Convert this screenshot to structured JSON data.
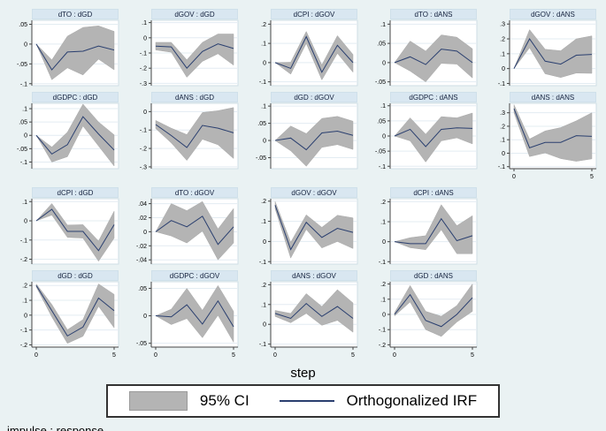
{
  "window": {
    "xlabel": "step",
    "footnote": "impulse : response"
  },
  "legend": {
    "ci_label": "95% CI",
    "irf_label": "Orthogonalized IRF"
  },
  "colors": {
    "background": "#eaf2f3",
    "plot_bg": "#ffffff",
    "plot_border": "#cfdde6",
    "grid": "#e3ecf2",
    "title_strip": "#d9e7f1",
    "ci_fill": "#b4b4b4",
    "ci_edge": "#a8a8a8",
    "irf_line": "#2a3f6f",
    "axis": "#444444"
  },
  "chart_data": {
    "type": "line",
    "note": "panel of orthogonalized impulse-response functions with 95% CI bands",
    "x": [
      0,
      1,
      2,
      3,
      4,
      5
    ],
    "xticks_shown": [
      0,
      5
    ],
    "rows": [
      [
        0,
        1,
        2,
        3,
        4
      ],
      [
        5,
        6,
        7,
        8,
        9
      ],
      [
        10,
        11,
        12,
        13
      ],
      [
        14,
        15,
        16,
        17
      ]
    ],
    "charts": [
      {
        "title": "dTO : dGD",
        "yticks": [
          ".05",
          "0",
          "-.05",
          "-.1"
        ],
        "ylim": [
          -0.105,
          0.06
        ],
        "show_x_axis": false,
        "irf": [
          0,
          -0.065,
          -0.02,
          -0.018,
          -0.005,
          -0.015
        ],
        "ci_lower": [
          0,
          -0.09,
          -0.06,
          -0.078,
          -0.038,
          -0.065
        ],
        "ci_upper": [
          0,
          -0.04,
          0.02,
          0.042,
          0.046,
          0.032
        ]
      },
      {
        "title": "dGOV : dGD",
        "yticks": [
          ".1",
          "0",
          "-.1",
          "-.2",
          "-.3"
        ],
        "ylim": [
          -0.315,
          0.115
        ],
        "show_x_axis": false,
        "irf": [
          -0.055,
          -0.06,
          -0.2,
          -0.09,
          -0.04,
          -0.07
        ],
        "ci_lower": [
          -0.08,
          -0.095,
          -0.26,
          -0.155,
          -0.105,
          -0.18
        ],
        "ci_upper": [
          -0.03,
          -0.03,
          -0.145,
          -0.03,
          0.025,
          0.025
        ]
      },
      {
        "title": "dCPI : dGOV",
        "yticks": [
          ".2",
          ".1",
          "0",
          "-.1"
        ],
        "ylim": [
          -0.12,
          0.22
        ],
        "show_x_axis": false,
        "irf": [
          0,
          -0.03,
          0.135,
          -0.05,
          0.09,
          0
        ],
        "ci_lower": [
          0,
          -0.06,
          0.1,
          -0.09,
          0.048,
          -0.05
        ],
        "ci_upper": [
          0,
          0.002,
          0.162,
          -0.012,
          0.14,
          0.042
        ]
      },
      {
        "title": "dTO : dANS",
        "yticks": [
          ".1",
          ".05",
          "0",
          "-.05"
        ],
        "ylim": [
          -0.06,
          0.11
        ],
        "show_x_axis": false,
        "irf": [
          0,
          0.015,
          -0.005,
          0.035,
          0.03,
          0
        ],
        "ci_lower": [
          0,
          -0.022,
          -0.05,
          -0.002,
          -0.004,
          -0.04
        ],
        "ci_upper": [
          0,
          0.056,
          0.03,
          0.072,
          0.066,
          0.036
        ]
      },
      {
        "title": "dGOV : dANS",
        "yticks": [
          ".3",
          ".2",
          ".1",
          "0",
          "-.1"
        ],
        "ylim": [
          -0.115,
          0.325
        ],
        "show_x_axis": false,
        "irf": [
          0,
          0.2,
          0.05,
          0.03,
          0.09,
          0.095
        ],
        "ci_lower": [
          0,
          0.14,
          -0.035,
          -0.06,
          -0.03,
          -0.032
        ],
        "ci_upper": [
          0,
          0.262,
          0.13,
          0.12,
          0.2,
          0.22
        ]
      },
      {
        "title": "dGDPC : dGD",
        "yticks": [
          ".1",
          ".05",
          "0",
          "-.05",
          "-.1"
        ],
        "ylim": [
          -0.125,
          0.12
        ],
        "show_x_axis": false,
        "irf": [
          0,
          -0.07,
          -0.035,
          0.07,
          0.005,
          -0.055
        ],
        "ci_lower": [
          0,
          -0.1,
          -0.08,
          0.035,
          -0.04,
          -0.115
        ],
        "ci_upper": [
          0,
          -0.044,
          0.012,
          0.117,
          0.05,
          0.002
        ]
      },
      {
        "title": "dANS : dGD",
        "yticks": [
          "0",
          "-.1",
          "-.2",
          "-.3"
        ],
        "ylim": [
          -0.31,
          0.045
        ],
        "show_x_axis": false,
        "irf": [
          -0.07,
          -0.13,
          -0.195,
          -0.075,
          -0.09,
          -0.115
        ],
        "ci_lower": [
          -0.092,
          -0.17,
          -0.265,
          -0.15,
          -0.18,
          -0.255
        ],
        "ci_upper": [
          -0.048,
          -0.09,
          -0.125,
          -0.005,
          0.005,
          0.022
        ]
      },
      {
        "title": "dGD : dGOV",
        "yticks": [
          ".1",
          ".05",
          "0",
          "-.05"
        ],
        "ylim": [
          -0.082,
          0.108
        ],
        "show_x_axis": false,
        "irf": [
          0,
          0.007,
          -0.027,
          0.022,
          0.027,
          0.015
        ],
        "ci_lower": [
          0,
          -0.03,
          -0.075,
          -0.02,
          -0.012,
          -0.026
        ],
        "ci_upper": [
          0,
          0.042,
          0.02,
          0.064,
          0.07,
          0.056
        ]
      },
      {
        "title": "dGDPC : dANS",
        "yticks": [
          ".1",
          ".05",
          "0",
          "-.05",
          "-.1"
        ],
        "ylim": [
          -0.108,
          0.108
        ],
        "show_x_axis": false,
        "irf": [
          0,
          0.022,
          -0.035,
          0.022,
          0.027,
          0.025
        ],
        "ci_lower": [
          0,
          -0.016,
          -0.086,
          -0.016,
          -0.006,
          -0.026
        ],
        "ci_upper": [
          0,
          0.06,
          0.006,
          0.064,
          0.06,
          0.076
        ]
      },
      {
        "title": "dANS : dANS",
        "yticks": [
          ".3",
          ".2",
          ".1",
          "0",
          "-.1"
        ],
        "ylim": [
          -0.115,
          0.37
        ],
        "show_x_axis": true,
        "irf": [
          0.33,
          0.04,
          0.08,
          0.08,
          0.13,
          0.125
        ],
        "ci_lower": [
          0.3,
          -0.025,
          0.002,
          -0.04,
          -0.06,
          -0.042
        ],
        "ci_upper": [
          0.36,
          0.105,
          0.165,
          0.19,
          0.24,
          0.3
        ]
      },
      {
        "title": "dCPI : dGD",
        "yticks": [
          ".1",
          "0",
          "-.1",
          "-.2"
        ],
        "ylim": [
          -0.225,
          0.115
        ],
        "show_x_axis": false,
        "irf": [
          0,
          0.06,
          -0.055,
          -0.055,
          -0.155,
          -0.02
        ],
        "ci_lower": [
          0,
          0.03,
          -0.086,
          -0.09,
          -0.21,
          -0.09
        ],
        "ci_upper": [
          0,
          0.09,
          -0.022,
          -0.02,
          -0.105,
          0.05
        ]
      },
      {
        "title": "dTO : dGOV",
        "yticks": [
          ".04",
          ".02",
          "0",
          "-.02",
          "-.04"
        ],
        "ylim": [
          -0.046,
          0.047
        ],
        "show_x_axis": false,
        "irf": [
          0,
          0.016,
          0.007,
          0.022,
          -0.018,
          0.007
        ],
        "ci_lower": [
          0,
          -0.006,
          -0.016,
          0.001,
          -0.04,
          -0.016
        ],
        "ci_upper": [
          0,
          0.04,
          0.03,
          0.043,
          0.004,
          0.033
        ]
      },
      {
        "title": "dGOV : dGOV",
        "yticks": [
          ".2",
          ".1",
          "0",
          "-.1"
        ],
        "ylim": [
          -0.112,
          0.212
        ],
        "show_x_axis": false,
        "irf": [
          0.18,
          -0.04,
          0.095,
          0.02,
          0.065,
          0.045
        ],
        "ci_lower": [
          0.162,
          -0.082,
          0.06,
          -0.032,
          0,
          -0.035
        ],
        "ci_upper": [
          0.198,
          -0.004,
          0.132,
          0.07,
          0.13,
          0.117
        ]
      },
      {
        "title": "dCPI : dANS",
        "yticks": [
          ".2",
          ".1",
          "0",
          "-.1"
        ],
        "ylim": [
          -0.112,
          0.215
        ],
        "show_x_axis": false,
        "irf": [
          0,
          -0.01,
          -0.01,
          0.115,
          0.005,
          0.03
        ],
        "ci_lower": [
          0,
          -0.03,
          -0.04,
          0.06,
          -0.06,
          -0.06
        ],
        "ci_upper": [
          0,
          0.02,
          0.03,
          0.185,
          0.08,
          0.13
        ]
      },
      {
        "title": "dGD : dGD",
        "yticks": [
          ".2",
          ".1",
          "0",
          "-.1",
          "-.2"
        ],
        "ylim": [
          -0.215,
          0.225
        ],
        "show_x_axis": true,
        "irf": [
          0.2,
          0.03,
          -0.14,
          -0.08,
          0.115,
          0.03
        ],
        "ci_lower": [
          0.19,
          -0.012,
          -0.19,
          -0.142,
          0.06,
          -0.085
        ],
        "ci_upper": [
          0.21,
          0.072,
          -0.098,
          -0.03,
          0.21,
          0.14
        ]
      },
      {
        "title": "dGDPC : dGOV",
        "yticks": [
          ".05",
          "0",
          "-.05"
        ],
        "ylim": [
          -0.057,
          0.062
        ],
        "show_x_axis": true,
        "irf": [
          0,
          -0.002,
          0.02,
          -0.015,
          0.027,
          -0.02
        ],
        "ci_lower": [
          0,
          -0.016,
          -0.005,
          -0.04,
          0.001,
          -0.048
        ],
        "ci_upper": [
          0,
          0.012,
          0.05,
          0.01,
          0.055,
          0.008
        ]
      },
      {
        "title": "dANS : dGOV",
        "yticks": [
          ".2",
          ".1",
          "0",
          "-.1"
        ],
        "ylim": [
          -0.115,
          0.215
        ],
        "show_x_axis": true,
        "irf": [
          0.055,
          0.03,
          0.105,
          0.04,
          0.09,
          0.03
        ],
        "ci_lower": [
          0.04,
          0.008,
          0.055,
          -0.005,
          0.02,
          -0.04
        ],
        "ci_upper": [
          0.07,
          0.055,
          0.155,
          0.09,
          0.175,
          0.108
        ]
      },
      {
        "title": "dGD : dANS",
        "yticks": [
          ".2",
          ".1",
          "0",
          "-.1",
          "-.2"
        ],
        "ylim": [
          -0.215,
          0.215
        ],
        "show_x_axis": true,
        "irf": [
          0,
          0.13,
          -0.04,
          -0.08,
          0,
          0.11
        ],
        "ci_lower": [
          -0.01,
          0.082,
          -0.1,
          -0.145,
          -0.05,
          0.02
        ],
        "ci_upper": [
          0.012,
          0.19,
          0.02,
          -0.012,
          0.058,
          0.2
        ]
      }
    ]
  }
}
